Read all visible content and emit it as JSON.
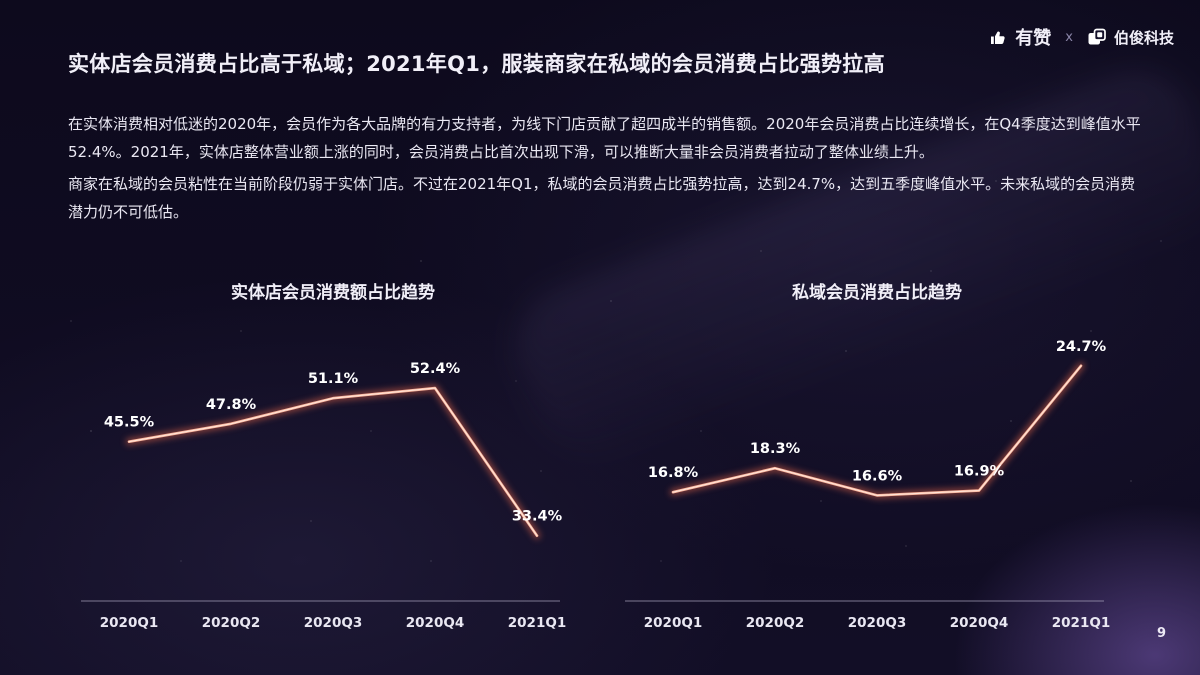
{
  "header": {
    "brand_left": "有赞",
    "separator": "x",
    "brand_right": "伯俊科技",
    "icons": {
      "left": "thumbs-up-icon",
      "right": "overlapping-squares-icon"
    }
  },
  "title": "实体店会员消费占比高于私域；2021年Q1，服装商家在私域的会员消费占比强势拉高",
  "paragraphs": [
    "在实体消费相对低迷的2020年，会员作为各大品牌的有力支持者，为线下门店贡献了超四成半的销售额。2020年会员消费占比连续增长，在Q4季度达到峰值水平52.4%。2021年，实体店整体营业额上涨的同时，会员消费占比首次出现下滑，可以推断大量非会员消费者拉动了整体业绩上升。",
    "商家在私域的会员粘性在当前阶段仍弱于实体门店。不过在2021年Q1，私域的会员消费占比强势拉高，达到24.7%，达到五季度峰值水平。未来私域的会员消费潜力仍不可低估。"
  ],
  "page_number": "9",
  "colors": {
    "background": "#100c22",
    "line": "#f9b49c",
    "line_glow": "#dd6247",
    "text": "#f1eff8",
    "axis": "#a7a2bd",
    "corner_glow": "#8563c3"
  },
  "chart_data": [
    {
      "type": "line",
      "title": "实体店会员消费额占比趋势",
      "categories": [
        "2020Q1",
        "2020Q2",
        "2020Q3",
        "2020Q4",
        "2021Q1"
      ],
      "values": [
        45.5,
        47.8,
        51.1,
        52.4,
        33.4
      ],
      "labels": [
        "45.5%",
        "47.8%",
        "51.1%",
        "52.4%",
        "33.4%"
      ],
      "xlabel": "",
      "ylabel": "",
      "ylim": [
        25,
        60
      ],
      "grid": false,
      "legend": "none"
    },
    {
      "type": "line",
      "title": "私域会员消费占比趋势",
      "categories": [
        "2020Q1",
        "2020Q2",
        "2020Q3",
        "2020Q4",
        "2021Q1"
      ],
      "values": [
        16.8,
        18.3,
        16.6,
        16.9,
        24.7
      ],
      "labels": [
        "16.8%",
        "18.3%",
        "16.6%",
        "16.9%",
        "24.7%"
      ],
      "xlabel": "",
      "ylabel": "",
      "ylim": [
        10,
        27
      ],
      "grid": false,
      "legend": "none"
    }
  ]
}
